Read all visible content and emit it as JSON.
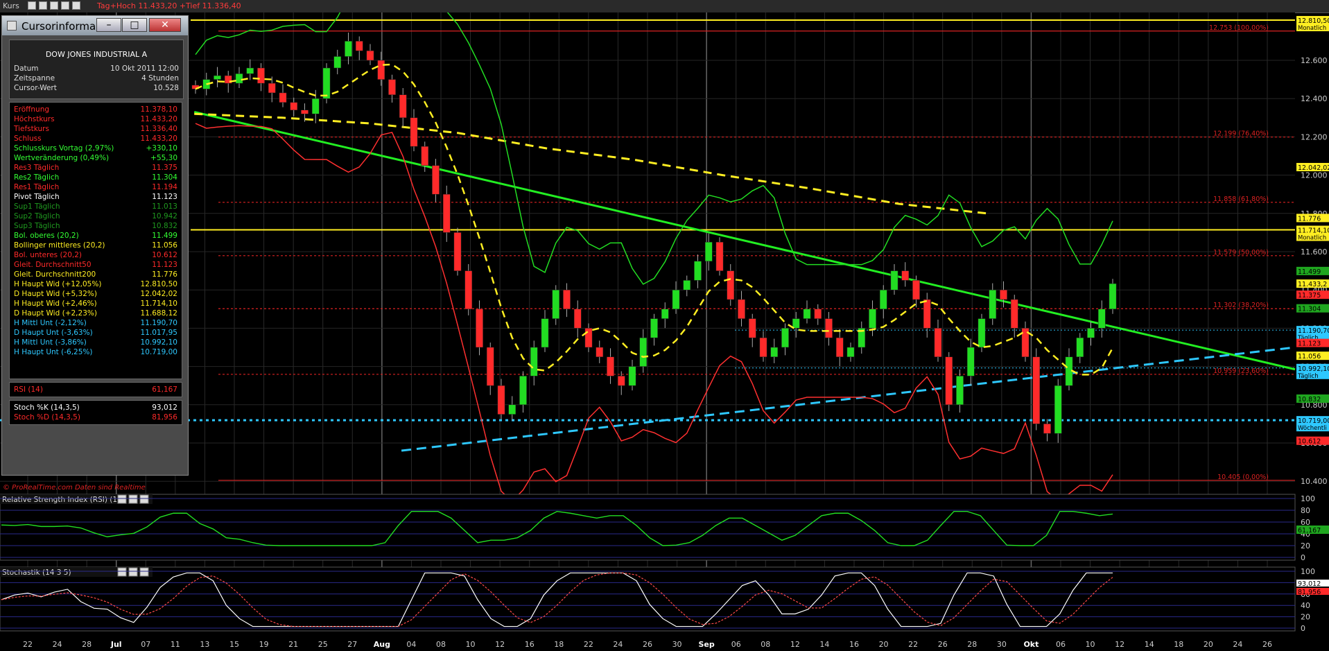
{
  "topbar": {
    "title": "Kurs",
    "hilo": "Tag+Hoch 11.433,20 +Tief 11.336,40"
  },
  "watermark": "© ProRealTime.com  Daten sind Realtime",
  "cursor_window": {
    "title": "Cursorinforma...",
    "instrument": "DOW JONES INDUSTRIAL A",
    "info": [
      {
        "label": "Datum",
        "value": "10 Okt 2011 12:00"
      },
      {
        "label": "Zeitspanne",
        "value": "4 Stunden"
      },
      {
        "label": "Cursor-Wert",
        "value": "10.528"
      }
    ],
    "rows": [
      {
        "label": "Eröffnung",
        "value": "11.378,10",
        "color": "#ff2a2a"
      },
      {
        "label": "Höchstkurs",
        "value": "11.433,20",
        "color": "#ff2a2a"
      },
      {
        "label": "Tiefstkurs",
        "value": "11.336,40",
        "color": "#ff2a2a"
      },
      {
        "label": "Schluss",
        "value": "11.433,20",
        "color": "#ff2a2a"
      },
      {
        "label": "Schlusskurs Vortag (2,97%)",
        "value": "+330,10",
        "color": "#33ff33"
      },
      {
        "label": "Wertveränderung (0,49%)",
        "value": "+55,30",
        "color": "#33ff33"
      },
      {
        "label": "Res3 Täglich",
        "value": "11.375",
        "color": "#ff2a2a"
      },
      {
        "label": "Res2 Täglich",
        "value": "11.304",
        "color": "#33ff33"
      },
      {
        "label": "Res1 Täglich",
        "value": "11.194",
        "color": "#ff2a2a"
      },
      {
        "label": "Pivot Täglich",
        "value": "11.123",
        "color": "#ffffff"
      },
      {
        "label": "Sup1 Täglich",
        "value": "11.013",
        "color": "#1f9a1f"
      },
      {
        "label": "Sup2 Täglich",
        "value": "10.942",
        "color": "#1f9a1f"
      },
      {
        "label": "Sup3 Täglich",
        "value": "10.832",
        "color": "#1f9a1f"
      },
      {
        "label": "Bol. oberes (20,2)",
        "value": "11.499",
        "color": "#33ff33"
      },
      {
        "label": "Bollinger mittleres (20,2)",
        "value": "11.056",
        "color": "#ffee22"
      },
      {
        "label": "Bol. unteres (20,2)",
        "value": "10.612",
        "color": "#ff2a2a"
      },
      {
        "label": "Gleit. Durchschnitt50",
        "value": "11.123",
        "color": "#ff2a2a"
      },
      {
        "label": "Gleit. Durchschnitt200",
        "value": "11.776",
        "color": "#ffee22"
      },
      {
        "label": "H Haupt Wid (+12,05%)",
        "value": "12.810,50",
        "color": "#ffee22"
      },
      {
        "label": "D Haupt Wid (+5,32%)",
        "value": "12.042,02",
        "color": "#ffee22"
      },
      {
        "label": "H Haupt Wid (+2,46%)",
        "value": "11.714,10",
        "color": "#ffee22"
      },
      {
        "label": "D Haupt Wid (+2,23%)",
        "value": "11.688,12",
        "color": "#ffee22"
      },
      {
        "label": "H Mittl Unt (-2,12%)",
        "value": "11.190,70",
        "color": "#2ec8ff"
      },
      {
        "label": "D Haupt Unt (-3,63%)",
        "value": "11.017,95",
        "color": "#2ec8ff"
      },
      {
        "label": "H Mittl Unt (-3,86%)",
        "value": "10.992,10",
        "color": "#2ec8ff"
      },
      {
        "label": "H Haupt Unt (-6,25%)",
        "value": "10.719,00",
        "color": "#2ec8ff"
      }
    ],
    "rsi": [
      {
        "label": "RSI (14)",
        "value": "61,167",
        "color": "#ff2a2a"
      }
    ],
    "stoch": [
      {
        "label": "Stoch %K (14,3,5)",
        "value": "93,012",
        "color": "#ffffff"
      },
      {
        "label": "Stoch %D (14,3,5)",
        "value": "81,956",
        "color": "#ff2a2a"
      }
    ]
  },
  "rsi_panel": {
    "title": "Relative Strength Index (RSI) (14)"
  },
  "stoch_panel": {
    "title": "Stochastik (14 3 5)"
  },
  "chart_data": {
    "type": "candlestick",
    "ylim": [
      10350,
      12850
    ],
    "price_ticks": [
      "12.600",
      "12.400",
      "12.200",
      "12.000",
      "11.800",
      "11.600",
      "11.400",
      "11.200",
      "11.000",
      "10.800",
      "10.600",
      "10.400"
    ],
    "price_tick_values": [
      12600,
      12400,
      12200,
      12000,
      11800,
      11600,
      11400,
      11200,
      11000,
      10800,
      10600,
      10400
    ],
    "x_tick_labels": [
      "22",
      "24",
      "28",
      "Jul",
      "07",
      "11",
      "13",
      "15",
      "19",
      "21",
      "25",
      "27",
      "Aug",
      "04",
      "08",
      "10",
      "12",
      "16",
      "18",
      "22",
      "24",
      "26",
      "30",
      "Sep",
      "06",
      "08",
      "12",
      "14",
      "16",
      "20",
      "22",
      "26",
      "28",
      "30",
      "Okt",
      "06",
      "10",
      "12",
      "14",
      "18",
      "20",
      "24",
      "26"
    ],
    "x_months": [
      "Jul",
      "Aug",
      "Sep",
      "Okt"
    ],
    "fib_levels": [
      {
        "label": "12.753 (100,00%)",
        "value": 12753
      },
      {
        "label": "12.199 (76,40%)",
        "value": 12199
      },
      {
        "label": "11.858 (61,80%)",
        "value": 11858
      },
      {
        "label": "11.579 (50,00%)",
        "value": 11579
      },
      {
        "label": "11.302 (38,20%)",
        "value": 11302
      },
      {
        "label": "10.959 (23,60%)",
        "value": 10959
      },
      {
        "label": "10.405 (0,00%)",
        "value": 10405
      }
    ],
    "right_labels": [
      {
        "text": "12.810,50",
        "sub": "Monatlich",
        "value": 12810,
        "bg": "#ffee22",
        "fg": "#000"
      },
      {
        "text": "12.042,02",
        "sub": "",
        "value": 12042,
        "bg": "#ffee22",
        "fg": "#000"
      },
      {
        "text": "11.776",
        "sub": "",
        "value": 11776,
        "bg": "#ffee22",
        "fg": "#000"
      },
      {
        "text": "11.714,10",
        "sub": "Monatlich",
        "value": 11714,
        "bg": "#ffee22",
        "fg": "#000"
      },
      {
        "text": "11.499",
        "sub": "",
        "value": 11499,
        "bg": "#1fa61f",
        "fg": "#000"
      },
      {
        "text": "11.433,2",
        "sub": "",
        "value": 11433,
        "bg": "#ffee22",
        "fg": "#000"
      },
      {
        "text": "11.375",
        "sub": "",
        "value": 11375,
        "bg": "#ff2a2a",
        "fg": "#000"
      },
      {
        "text": "11.304",
        "sub": "",
        "value": 11304,
        "bg": "#1fa61f",
        "fg": "#000"
      },
      {
        "text": "11.190,70",
        "sub": "Täglich",
        "value": 11190,
        "bg": "#2ec8ff",
        "fg": "#000"
      },
      {
        "text": "11.123",
        "sub": "",
        "value": 11123,
        "bg": "#ff2a2a",
        "fg": "#000"
      },
      {
        "text": "11.056",
        "sub": "",
        "value": 11056,
        "bg": "#ffee22",
        "fg": "#000"
      },
      {
        "text": "10.992,10",
        "sub": "Täglich",
        "value": 10992,
        "bg": "#2ec8ff",
        "fg": "#000"
      },
      {
        "text": "10.832",
        "sub": "",
        "value": 10832,
        "bg": "#1fa61f",
        "fg": "#000"
      },
      {
        "text": "10.719,00",
        "sub": "Wöchentli",
        "value": 10719,
        "bg": "#2ec8ff",
        "fg": "#000"
      },
      {
        "text": "10.612",
        "sub": "",
        "value": 10612,
        "bg": "#ff2a2a",
        "fg": "#000"
      }
    ],
    "horizontal_lines": [
      {
        "value": 12810,
        "color": "#ffee22",
        "width": 2,
        "dash": ""
      },
      {
        "value": 11714,
        "color": "#ffee22",
        "width": 2,
        "dash": ""
      },
      {
        "value": 11190,
        "color": "#2ec8ff",
        "width": 1,
        "dash": "2,3"
      },
      {
        "value": 10992,
        "color": "#2ec8ff",
        "width": 1,
        "dash": "2,3"
      },
      {
        "value": 10719,
        "color": "#2ec8ff",
        "width": 3,
        "dash": "4,5"
      }
    ],
    "trend_lines": [
      {
        "x1": 0.0,
        "y1": 12330,
        "x2": 1.0,
        "y2": 10985,
        "color": "#22ee22",
        "width": 3,
        "dash": ""
      },
      {
        "x1": 0.2,
        "y1": 10560,
        "x2": 1.0,
        "y2": 11100,
        "color": "#2ec8ff",
        "width": 3,
        "dash": "14,8"
      }
    ],
    "ma200": [
      [
        0,
        12320
      ],
      [
        0.1,
        12300
      ],
      [
        0.2,
        12270
      ],
      [
        0.3,
        12220
      ],
      [
        0.4,
        12140
      ],
      [
        0.5,
        12080
      ],
      [
        0.6,
        12000
      ],
      [
        0.7,
        11930
      ],
      [
        0.8,
        11850
      ],
      [
        0.9,
        11800
      ],
      [
        0.83,
        11776
      ]
    ],
    "series_close": [
      12450,
      12500,
      12520,
      12480,
      12530,
      12560,
      12480,
      12430,
      12380,
      12340,
      12320,
      12400,
      12560,
      12620,
      12700,
      12650,
      12600,
      12500,
      12420,
      12300,
      12150,
      12050,
      11900,
      11700,
      11500,
      11300,
      11100,
      10900,
      10750,
      10800,
      10950,
      11100,
      11250,
      11400,
      11300,
      11200,
      11100,
      11050,
      10950,
      10900,
      11000,
      11150,
      11250,
      11300,
      11400,
      11450,
      11550,
      11650,
      11500,
      11350,
      11250,
      11150,
      11050,
      11100,
      11200,
      11250,
      11300,
      11250,
      11150,
      11050,
      11100,
      11200,
      11300,
      11400,
      11500,
      11450,
      11350,
      11200,
      11050,
      10800,
      10950,
      11100,
      11250,
      11400,
      11350,
      11200,
      11050,
      10700,
      10650,
      10900,
      11050,
      11150,
      11200,
      11300,
      11433
    ]
  }
}
